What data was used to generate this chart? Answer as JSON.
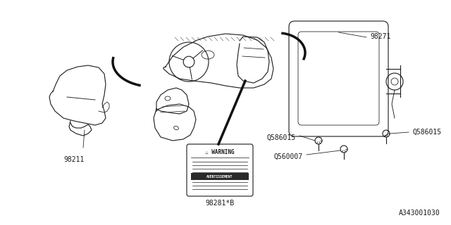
{
  "bg_color": "#ffffff",
  "line_color": "#1a1a1a",
  "text_color": "#1a1a1a",
  "diagram_id": "A343001030",
  "font_size_label": 7,
  "font_size_diagram_id": 7,
  "parts": {
    "airbag_left_label": "98211",
    "dashboard_label": "98271",
    "warning_label": "98281*B",
    "bolt1_label": "Q586015",
    "bolt2_label": "Q586015",
    "bolt3_label": "Q560007"
  }
}
